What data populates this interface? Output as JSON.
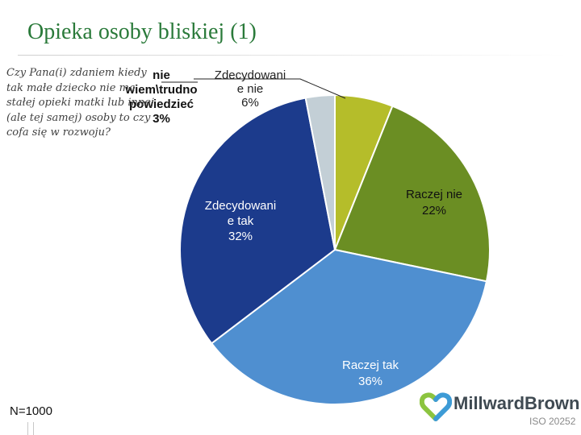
{
  "slide": {
    "title": "Opieka osoby bliskiej (1)",
    "question": "Czy Pana(i) zdaniem kiedy tak małe dziecko nie ma stałej opieki matki lub innej (ale tej samej) osoby to czy cofa się w rozwoju?",
    "sample_size": "N=1000"
  },
  "logo": {
    "name": "MillwardBrown",
    "iso": "ISO 20252",
    "colors": [
      "#8cc43f",
      "#3d9bd6"
    ]
  },
  "chart_data": {
    "type": "pie",
    "title": "",
    "start_angle_deg": 0,
    "direction": "clockwise",
    "slices": [
      {
        "label": "Zdecydowanie nie",
        "label_lines": [
          "Zdecydowani",
          "e nie",
          "6%"
        ],
        "value": 6,
        "color": "#b5bd2a",
        "label_color": "#222222",
        "label_bold": false
      },
      {
        "label": "Raczej nie",
        "label_lines": [
          "Raczej nie",
          "22%"
        ],
        "value": 22,
        "color": "#6b8e23",
        "label_color": "#111111",
        "label_bold": false
      },
      {
        "label": "Raczej tak",
        "label_lines": [
          "Raczej tak",
          "36%"
        ],
        "value": 36,
        "color": "#4f8fd0",
        "label_color": "#ffffff",
        "label_bold": false
      },
      {
        "label": "Zdecydowanie tak",
        "label_lines": [
          "Zdecydowani",
          "e tak",
          "32%"
        ],
        "value": 32,
        "color": "#1c3b8c",
        "label_color": "#ffffff",
        "label_bold": false
      },
      {
        "label": "nie wiem/trudno powiedzieć",
        "label_lines": [
          "nie",
          "wiem\\trudno",
          "powiedzieć",
          "3%"
        ],
        "value": 3,
        "color": "#c3cfd6",
        "label_color": "#111111",
        "label_bold": true
      }
    ]
  }
}
